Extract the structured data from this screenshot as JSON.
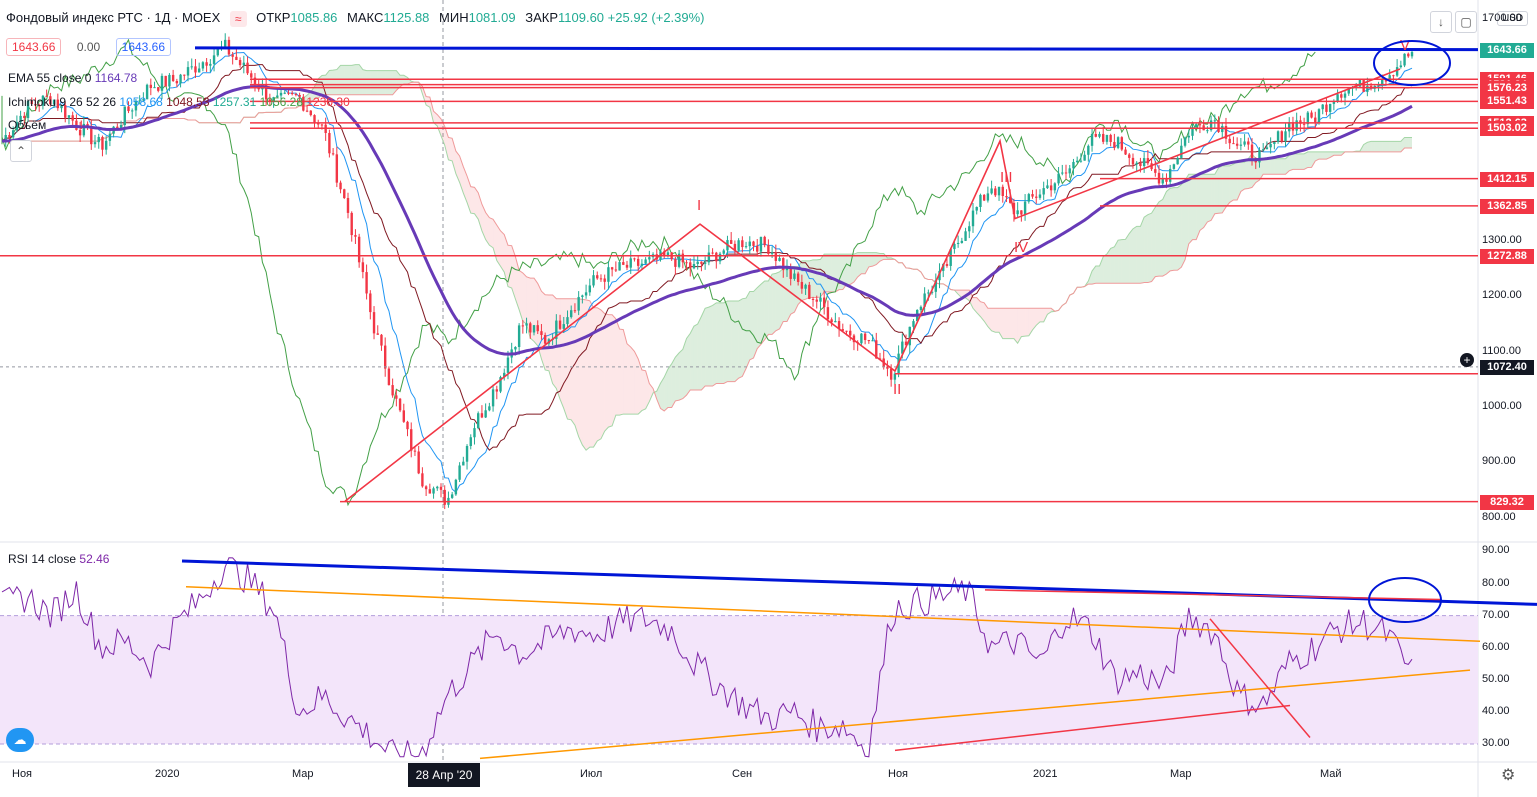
{
  "header": {
    "symbol": "Фондовый индекс РТС · 1Д · MOEX",
    "open_label": "ОТКР",
    "open": "1085.86",
    "high_label": "МАКС",
    "high": "1125.88",
    "low_label": "МИН",
    "low": "1081.09",
    "close_label": "ЗАКР",
    "close": "1109.60",
    "change": "+25.92 (+2.39%)",
    "bid": "1643.66",
    "spread": "0.00",
    "ask": "1643.66",
    "currency": "USD"
  },
  "indicators": {
    "ema_label": "EMA 55 close 0",
    "ema_value": "1164.78",
    "ichimoku_label": "Ichimoku 9 26 52 26",
    "ichimoku_values": [
      "1058.68",
      "1048.53",
      "1257.31",
      "1056.28",
      "1230.30"
    ],
    "volume_label": "Объём",
    "rsi_label": "RSI 14 close",
    "rsi_value": "52.46"
  },
  "colors": {
    "up": "#22ab94",
    "down": "#f23645",
    "ema": "#673ab7",
    "tenkan": "#2196f3",
    "kijun": "#801922",
    "chikou": "#43a047",
    "trend_blue": "#0015d6",
    "level_red": "#f23645",
    "rsi_line": "#7e27a8",
    "rsi_band": "#f3e5fa",
    "trend_orange": "#ff9800"
  },
  "chart_data": [
    {
      "type": "candlestick",
      "title": "Фондовый индекс РТС · 1Д · MOEX",
      "x_tick_labels": [
        "Ноя",
        "2020",
        "Мар",
        "28 Апр '20",
        "Июл",
        "Сен",
        "Ноя",
        "2021",
        "Мар",
        "Май"
      ],
      "y_tick_labels": [
        "800.00",
        "900.00",
        "1000.00",
        "1100.00",
        "1200.00",
        "1300.00",
        "1700.00"
      ],
      "ylim": [
        760,
        1720
      ],
      "price_levels": [
        {
          "label": "1644.59",
          "value": 1644.59,
          "color": "#f23645"
        },
        {
          "label": "1643.66",
          "value": 1643.66,
          "color": "#22ab94"
        },
        {
          "label": "1591.46",
          "value": 1591.46,
          "color": "#f23645"
        },
        {
          "label": "1581.84",
          "value": 1581.84,
          "color": "#f23645"
        },
        {
          "label": "1576.23",
          "value": 1576.23,
          "color": "#f23645"
        },
        {
          "label": "1551.43",
          "value": 1551.43,
          "color": "#f23645"
        },
        {
          "label": "1512.63",
          "value": 1512.63,
          "color": "#f23645"
        },
        {
          "label": "1503.02",
          "value": 1503.02,
          "color": "#f23645"
        },
        {
          "label": "1412.15",
          "value": 1412.15,
          "color": "#f23645"
        },
        {
          "label": "1362.85",
          "value": 1362.85,
          "color": "#f23645"
        },
        {
          "label": "1272.88",
          "value": 1272.88,
          "color": "#f23645"
        },
        {
          "label": "1072.40",
          "value": 1072.4,
          "color": "#131722"
        },
        {
          "label": "829.32",
          "value": 829.32,
          "color": "#f23645"
        }
      ],
      "wave_labels": [
        "I",
        "II",
        "III",
        "IV",
        "V"
      ],
      "close_path": [
        1480,
        1540,
        1560,
        1510,
        1470,
        1530,
        1580,
        1590,
        1620,
        1650,
        1600,
        1550,
        1560,
        1500,
        1350,
        1150,
        1000,
        870,
        830,
        960,
        1040,
        1150,
        1120,
        1180,
        1230,
        1250,
        1260,
        1270,
        1250,
        1280,
        1300,
        1290,
        1230,
        1190,
        1140,
        1120,
        1060,
        1180,
        1240,
        1330,
        1400,
        1350,
        1390,
        1420,
        1480,
        1480,
        1440,
        1410,
        1500,
        1520,
        1470,
        1450,
        1510,
        1520,
        1570,
        1580,
        1600,
        1640
      ]
    },
    {
      "type": "line",
      "title": "RSI 14 close",
      "y_tick_labels": [
        "30.00",
        "40.00",
        "50.00",
        "60.00",
        "70.00",
        "80.00",
        "90.00"
      ],
      "ylim": [
        25,
        92
      ],
      "band": [
        30,
        70
      ],
      "values": [
        73,
        76,
        70,
        78,
        60,
        62,
        55,
        67,
        75,
        86,
        81,
        72,
        40,
        45,
        38,
        32,
        25,
        28,
        45,
        55,
        65,
        58,
        62,
        66,
        64,
        68,
        69,
        66,
        55,
        48,
        42,
        38,
        40,
        35,
        36,
        28,
        72,
        74,
        76,
        78,
        60,
        62,
        55,
        70,
        66,
        50,
        52,
        48,
        70,
        65,
        45,
        42,
        55,
        60,
        66,
        68,
        64,
        52
      ]
    }
  ]
}
